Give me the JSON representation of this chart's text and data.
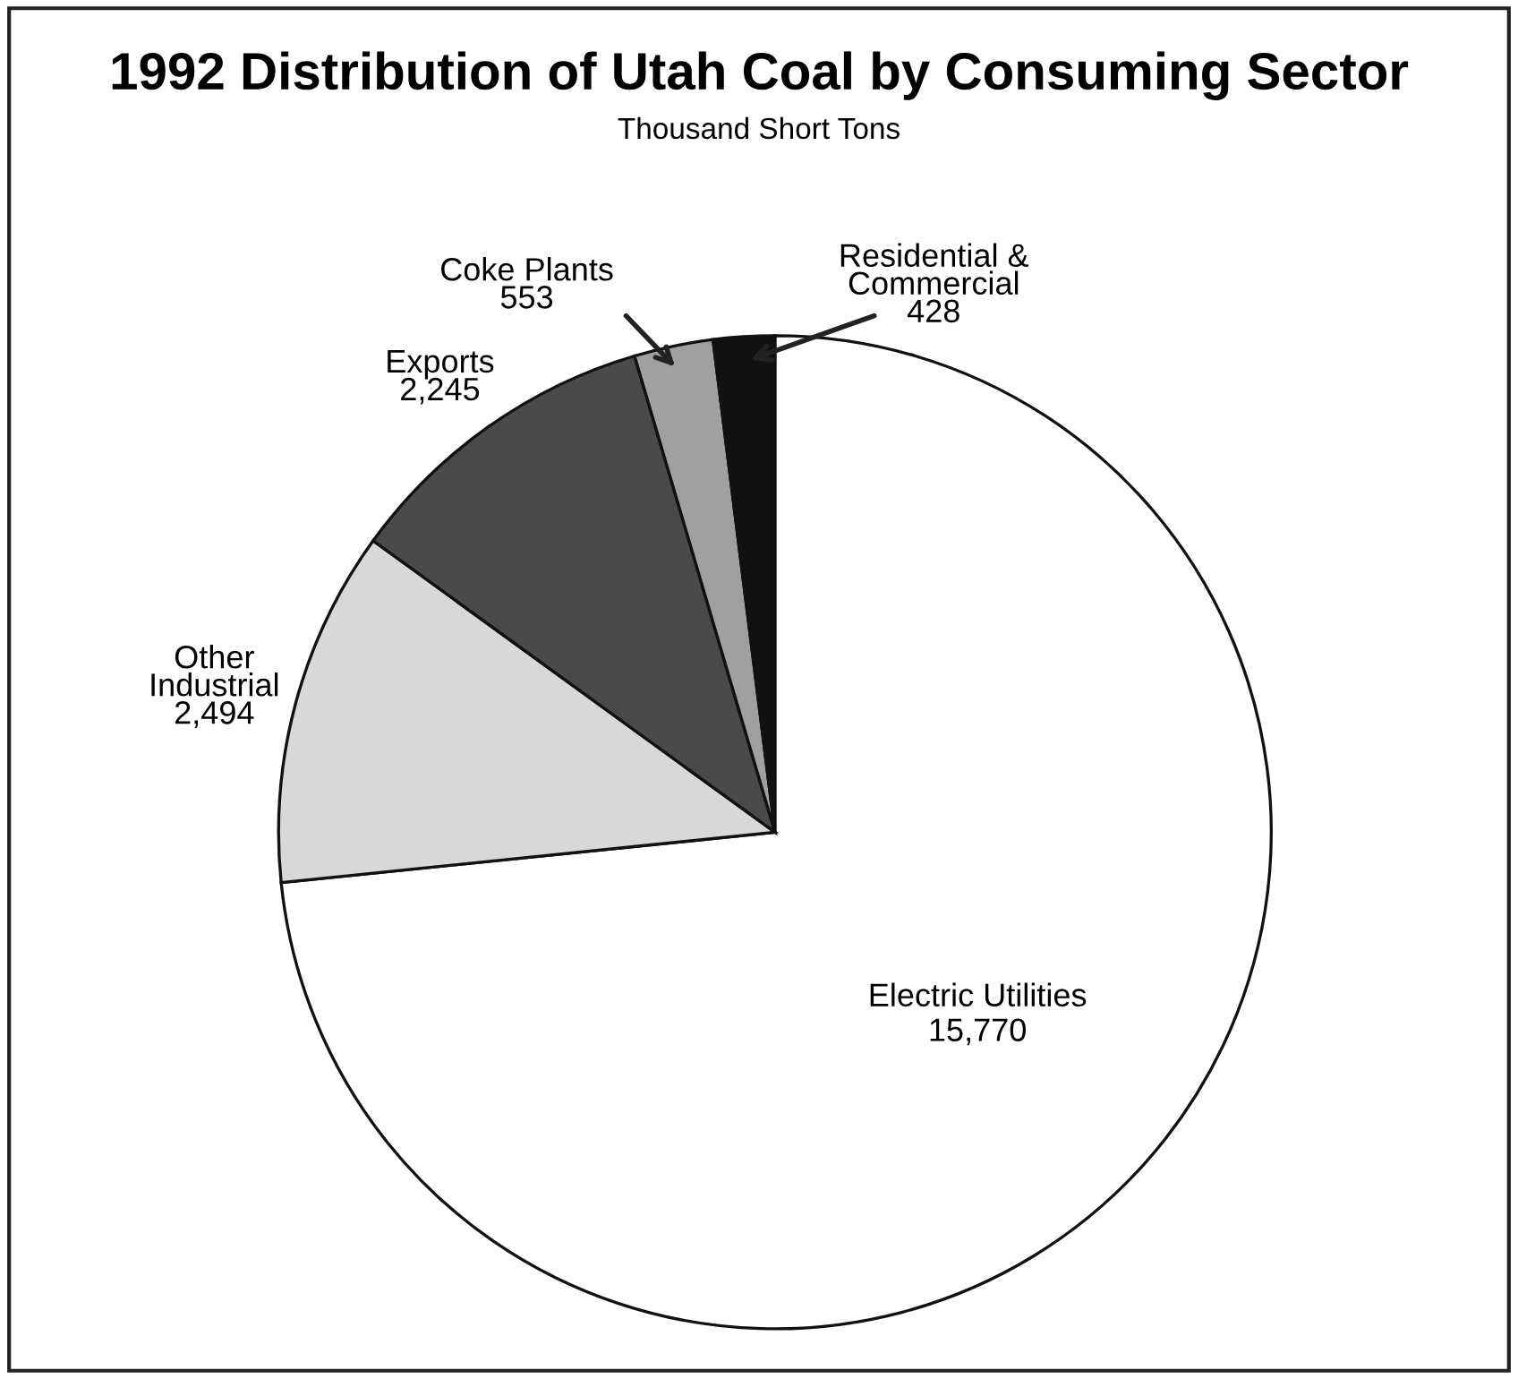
{
  "chart_data": {
    "type": "pie",
    "title": "1992 Distribution of Utah Coal by Consuming Sector",
    "subtitle": "Thousand Short Tons",
    "categories": [
      "Electric Utilities",
      "Other\nIndustrial",
      "Exports",
      "Coke Plants",
      "Residential &\nCommercial"
    ],
    "values": [
      15770,
      2494,
      2245,
      553,
      428
    ],
    "value_labels": [
      "15,770",
      "2,494",
      "2,245",
      "553",
      "428"
    ],
    "colors": [
      "#ffffff",
      "#d8d8d8",
      "#4a4a4a",
      "#a0a0a0",
      "#111111"
    ],
    "legend": false
  }
}
